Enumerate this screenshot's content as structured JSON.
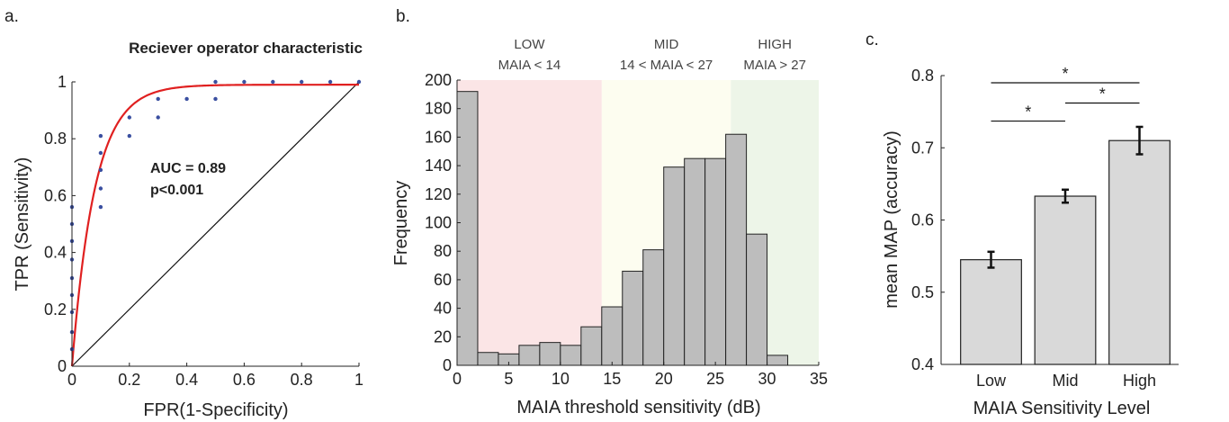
{
  "panels": {
    "a": "a.",
    "b": "b.",
    "c": "c."
  },
  "chart_data": [
    {
      "type": "scatter",
      "title": "Reciever operator characteristic",
      "xlabel": "FPR(1-Specificity)",
      "ylabel": "TPR (Sensitivity)",
      "xlim": [
        0,
        1
      ],
      "ylim": [
        0,
        1
      ],
      "xticks": [
        "0",
        "0.2",
        "0.4",
        "0.6",
        "0.8",
        "1"
      ],
      "yticks": [
        "0",
        "0.2",
        "0.4",
        "0.6",
        "0.8",
        "1"
      ],
      "annotations": [
        "AUC = 0.89",
        "p<0.001"
      ],
      "colors": {
        "points": "#3a4fa0",
        "curve": "#e02020",
        "diagonal": "#111111"
      },
      "points": [
        [
          0,
          0.06
        ],
        [
          0,
          0.12
        ],
        [
          0,
          0.19
        ],
        [
          0,
          0.25
        ],
        [
          0,
          0.31
        ],
        [
          0,
          0.375
        ],
        [
          0,
          0.44
        ],
        [
          0,
          0.5
        ],
        [
          0,
          0.56
        ],
        [
          0.1,
          0.56
        ],
        [
          0.1,
          0.625
        ],
        [
          0.1,
          0.69
        ],
        [
          0.1,
          0.75
        ],
        [
          0.1,
          0.81
        ],
        [
          0.2,
          0.81
        ],
        [
          0.2,
          0.875
        ],
        [
          0.3,
          0.875
        ],
        [
          0.3,
          0.94
        ],
        [
          0.4,
          0.94
        ],
        [
          0.5,
          0.94
        ],
        [
          0.5,
          1.0
        ],
        [
          0.6,
          1.0
        ],
        [
          0.7,
          1.0
        ],
        [
          0.8,
          1.0
        ],
        [
          0.9,
          1.0
        ],
        [
          1.0,
          1.0
        ]
      ],
      "fit_rate": 12.5,
      "fit_max": 0.99
    },
    {
      "type": "bar",
      "xlabel": "MAIA threshold sensitivity (dB)",
      "ylabel": "Frequency",
      "xlim": [
        0,
        35
      ],
      "ylim": [
        0,
        200
      ],
      "xticks": [
        "0",
        "5",
        "10",
        "15",
        "20",
        "25",
        "30",
        "35"
      ],
      "yticks": [
        "0",
        "20",
        "40",
        "60",
        "80",
        "100",
        "120",
        "140",
        "160",
        "180",
        "200"
      ],
      "bin_width": 2,
      "bin_starts": [
        0,
        2,
        4,
        6,
        8,
        10,
        12,
        14,
        16,
        18,
        20,
        22,
        24,
        26,
        28,
        30
      ],
      "values": [
        192,
        9,
        8,
        14,
        16,
        14,
        27,
        41,
        66,
        81,
        139,
        145,
        145,
        162,
        92,
        7
      ],
      "regions": [
        {
          "label": "LOW",
          "sublabel": "MAIA < 14",
          "from": 0,
          "to": 14,
          "color": "#fbe5e6"
        },
        {
          "label": "MID",
          "sublabel": "14 < MAIA < 27",
          "from": 14,
          "to": 26.5,
          "color": "#fdfdf0"
        },
        {
          "label": "HIGH",
          "sublabel": "MAIA > 27",
          "from": 26.5,
          "to": 35,
          "color": "#edf5e8"
        }
      ],
      "colors": {
        "bar": "#bdbdbd",
        "edge": "#222222"
      }
    },
    {
      "type": "bar",
      "xlabel": "MAIA Sensitivity Level",
      "ylabel": "mean MAP (accuracy)",
      "ylim": [
        0.4,
        0.8
      ],
      "yticks": [
        "0.4",
        "0.5",
        "0.6",
        "0.7",
        "0.8"
      ],
      "categories": [
        "Low",
        "Mid",
        "High"
      ],
      "values": [
        0.545,
        0.633,
        0.71
      ],
      "errors": [
        0.011,
        0.009,
        0.019
      ],
      "significance": [
        {
          "from": "Low",
          "to": "High",
          "label": "*",
          "y": 0.79
        },
        {
          "from": "Low",
          "to": "Mid",
          "label": "*",
          "y": 0.737
        },
        {
          "from": "Mid",
          "to": "High",
          "label": "*",
          "y": 0.762
        }
      ],
      "colors": {
        "bar": "#d9d9d9",
        "edge": "#222222"
      }
    }
  ]
}
